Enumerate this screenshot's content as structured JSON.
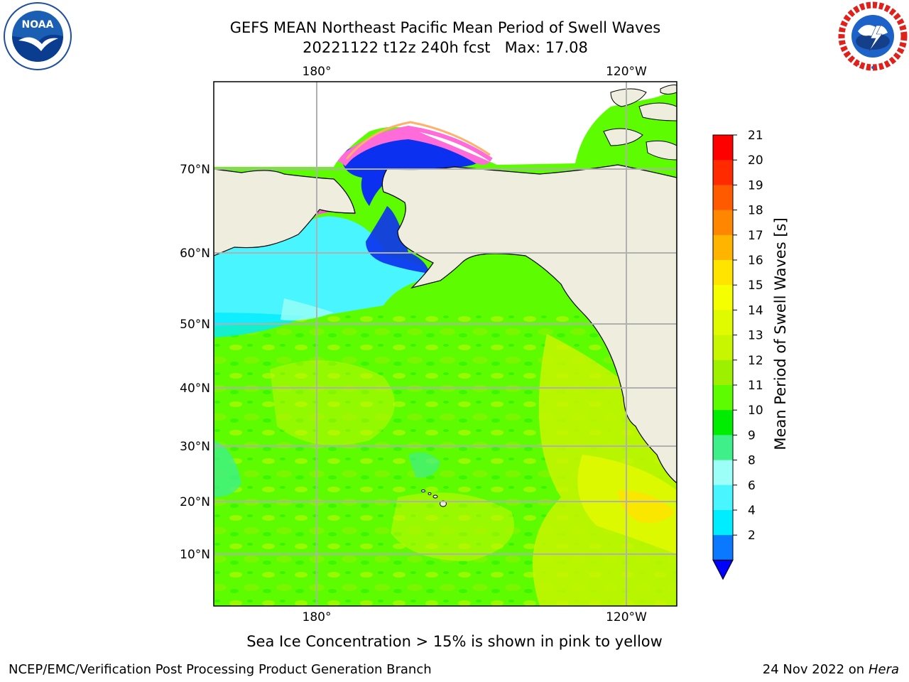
{
  "title": {
    "line1": "GEFS MEAN Northeast Pacific Mean Period of Swell Waves",
    "line2": "20221122 t12z 240h fcst   Max: 17.08"
  },
  "logos": {
    "left": "NOAA",
    "right": "NATIONAL WEATHER SERVICE"
  },
  "map": {
    "lon_labels_top": [
      "180°",
      "120°W"
    ],
    "lon_labels_bottom": [
      "180°",
      "120°W"
    ],
    "lat_labels": [
      "70°N",
      "60°N",
      "50°N",
      "40°N",
      "30°N",
      "20°N",
      "10°N"
    ],
    "land_color": "#efedde",
    "ocean_colors": {
      "dominant": "#5dfc00",
      "yellow_green": "#c8f500",
      "cyan": "#49f5ff",
      "blue": "#0c30f0"
    }
  },
  "colorbar": {
    "label": "Mean Period of Swell Waves [s]",
    "ticks": [
      "21",
      "20",
      "19",
      "18",
      "17",
      "16",
      "15",
      "14",
      "13",
      "12",
      "11",
      "10",
      "9",
      "8",
      "6",
      "4",
      "2"
    ],
    "colors_top_to_bottom": [
      "#ff0000",
      "#ff2a00",
      "#ff5a00",
      "#ff8600",
      "#ffb400",
      "#ffe400",
      "#f6ff00",
      "#e0fa00",
      "#c8f500",
      "#9cf000",
      "#5dfc00",
      "#00ec00",
      "#3ff08a",
      "#9cfff8",
      "#49f5ff",
      "#00ecff",
      "#0a78ff"
    ],
    "extend_color": "#0000ff"
  },
  "footnote": "Sea Ice Concentration > 15% is shown in pink to yellow",
  "credits": {
    "left": "NCEP/EMC/Verification Post Processing Product Generation Branch",
    "right_date": "24 Nov 2022 on",
    "right_machine": "Hera"
  }
}
